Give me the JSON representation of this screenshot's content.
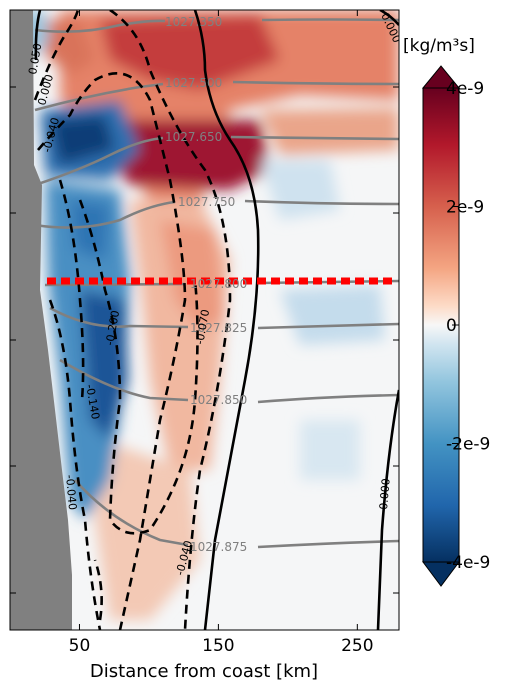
{
  "chart_data": {
    "type": "heatmap",
    "xlabel": "Distance from coast [km]",
    "x_ticks": [
      "50",
      "150",
      "250"
    ],
    "x_tick_values": [
      50,
      150,
      250
    ],
    "xlim": [
      0,
      280
    ],
    "colorbar": {
      "unit_label": "[kg/m³s]",
      "range": [
        -4e-09,
        4e-09
      ],
      "tick_labels": [
        "4e-9",
        "2e-9",
        "0",
        "-2e-9",
        "-4e-9"
      ],
      "tick_values": [
        4e-09,
        2e-09,
        0,
        -2e-09,
        -4e-09
      ],
      "colormap": "RdBu_r"
    },
    "density_contours": [
      {
        "label": "1027.350"
      },
      {
        "label": "1027.500"
      },
      {
        "label": "1027.650"
      },
      {
        "label": "1027.750"
      },
      {
        "label": "1027.800"
      },
      {
        "label": "1027.825"
      },
      {
        "label": "1027.850"
      },
      {
        "label": "1027.875"
      }
    ],
    "velocity_contours": [
      {
        "label": "0.050"
      },
      {
        "label": "0.000"
      },
      {
        "label": "-0.040"
      },
      {
        "label": "-0.200"
      },
      {
        "label": "-0.070"
      },
      {
        "label": "-0.140"
      },
      {
        "label": "-0.040"
      },
      {
        "label": "-0.040"
      },
      {
        "label": "0.000"
      },
      {
        "label": "0.000"
      }
    ],
    "annotation": "red dotted reference line at 1027.800 isopycnal depth"
  },
  "colors": {
    "land": "#808080",
    "density_contour": "#808080",
    "velocity_contour": "#000000",
    "reference_line": "#ff0000",
    "cb_pos": "#67001f",
    "cb_neg": "#053061"
  }
}
